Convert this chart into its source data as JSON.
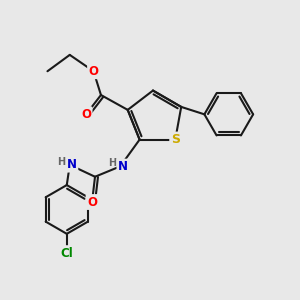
{
  "bg_color": "#e8e8e8",
  "bond_color": "#1a1a1a",
  "bond_width": 1.5,
  "atom_colors": {
    "O": "#ff0000",
    "N": "#0000cc",
    "S": "#ccaa00",
    "Cl": "#008800",
    "H": "#666666"
  },
  "font_size": 8.5,
  "figsize": [
    3.0,
    3.0
  ],
  "dpi": 100
}
